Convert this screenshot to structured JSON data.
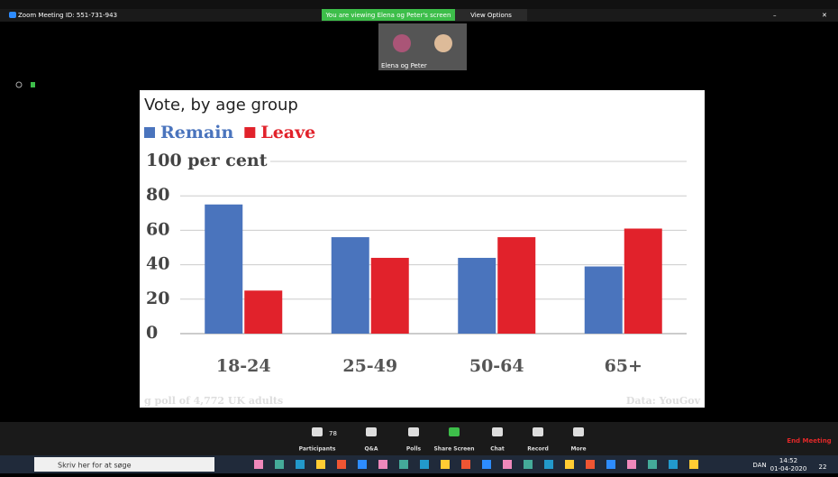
{
  "ui": {
    "meeting_id": "Zoom Meeting ID: 551-731-943",
    "banner": "You are viewing Elena og Peter's screen",
    "view_options": "View Options",
    "video_label": "Elena og Peter",
    "participant_count": "78",
    "toolbar": [
      "Participants",
      "Q&A",
      "Polls",
      "Share Screen",
      "Chat",
      "Record",
      "More"
    ],
    "end_meeting": "End Meeting",
    "search": "Skriv her for at søge",
    "language": "DAN",
    "time": "14:52",
    "date": "01-04-2020",
    "notifications": "22"
  },
  "chart_data": {
    "type": "bar",
    "title": "Vote, by age group",
    "categories": [
      "18-24",
      "25-49",
      "50-64",
      "65+"
    ],
    "series": [
      {
        "name": "Remain",
        "color": "#4a74bd",
        "values": [
          75,
          56,
          44,
          39
        ]
      },
      {
        "name": "Leave",
        "color": "#e1222b",
        "values": [
          25,
          44,
          56,
          61
        ]
      }
    ],
    "ylim": [
      0,
      100
    ],
    "yticks": [
      0,
      20,
      40,
      60,
      80,
      {
        "value": 100,
        "label": "100 per cent"
      }
    ],
    "grid": true,
    "source": "g poll of 4,772 UK adults",
    "credit": "Data: YouGov"
  }
}
